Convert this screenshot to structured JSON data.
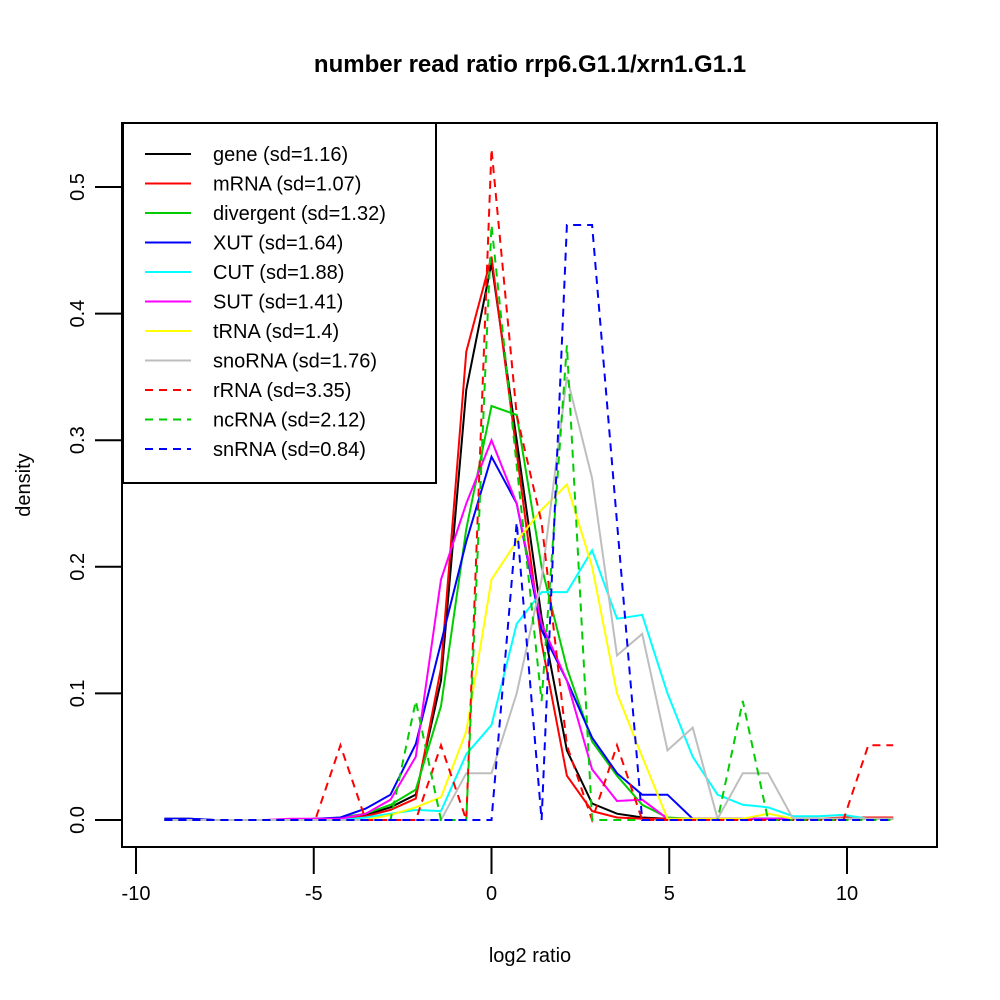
{
  "chart_data": {
    "type": "line",
    "title": "number read ratio rrp6.G1.1/xrn1.G1.1",
    "xlabel": "log2 ratio",
    "ylabel": "density",
    "xlim": [
      -10.0,
      12.0
    ],
    "ylim": [
      -0.02,
      0.55
    ],
    "xticks": [
      "-10",
      "-5",
      "0",
      "5",
      "10"
    ],
    "xtick_values": [
      -10,
      -5,
      0,
      5,
      10
    ],
    "yticks": [
      "0.0",
      "0.1",
      "0.2",
      "0.3",
      "0.4",
      "0.5"
    ],
    "ytick_values": [
      0.0,
      0.1,
      0.2,
      0.3,
      0.4,
      0.5
    ],
    "grid": false,
    "legend_position": "top-left",
    "x": [
      -9.2,
      -8.49,
      -7.79,
      -7.08,
      -6.37,
      -5.66,
      -4.96,
      -4.25,
      -3.54,
      -2.84,
      -2.13,
      -1.42,
      -0.71,
      0.0,
      0.71,
      1.41,
      2.12,
      2.83,
      3.53,
      4.24,
      4.95,
      5.66,
      6.36,
      7.07,
      7.78,
      8.48,
      9.19,
      9.9,
      10.6,
      11.3
    ],
    "series": [
      {
        "name": "gene (sd=1.16)",
        "color": "#000000",
        "dash": false,
        "values": [
          0.001,
          0.001,
          0.0,
          0.0,
          0.0,
          0.0,
          0.001,
          0.001,
          0.004,
          0.01,
          0.02,
          0.11,
          0.34,
          0.44,
          0.3,
          0.16,
          0.055,
          0.013,
          0.005,
          0.002,
          0.001,
          0.001,
          0.001,
          0.001,
          0.001,
          0.001,
          0.001,
          0.001,
          0.001,
          0.001
        ]
      },
      {
        "name": "mRNA (sd=1.07)",
        "color": "#ff0000",
        "dash": false,
        "values": [
          0.0,
          0.0,
          0.0,
          0.0,
          0.0,
          0.0,
          0.0,
          0.001,
          0.003,
          0.008,
          0.017,
          0.12,
          0.37,
          0.445,
          0.29,
          0.14,
          0.035,
          0.007,
          0.002,
          0.001,
          0.001,
          0.001,
          0.001,
          0.001,
          0.001,
          0.001,
          0.001,
          0.002,
          0.002,
          0.002
        ]
      },
      {
        "name": "divergent (sd=1.32)",
        "color": "#00cd00",
        "dash": false,
        "values": [
          0.0,
          0.0,
          0.0,
          0.0,
          0.0,
          0.0,
          0.0,
          0.002,
          0.005,
          0.012,
          0.024,
          0.09,
          0.23,
          0.327,
          0.32,
          0.2,
          0.12,
          0.062,
          0.035,
          0.012,
          0.002,
          0.001,
          0.001,
          0.001,
          0.001,
          0.001,
          0.001,
          0.001,
          0.001,
          0.001
        ]
      },
      {
        "name": "XUT (sd=1.64)",
        "color": "#0000ff",
        "dash": false,
        "values": [
          0.001,
          0.001,
          0.0,
          0.0,
          0.0,
          0.0,
          0.001,
          0.002,
          0.009,
          0.02,
          0.06,
          0.14,
          0.22,
          0.287,
          0.25,
          0.15,
          0.11,
          0.065,
          0.037,
          0.02,
          0.02,
          0.001,
          0.001,
          0.001,
          0.001,
          0.001,
          0.001,
          0.001,
          0.001,
          0.001
        ]
      },
      {
        "name": "CUT (sd=1.88)",
        "color": "#00ffff",
        "dash": false,
        "values": [
          0.0,
          0.0,
          0.0,
          0.0,
          0.0,
          0.0,
          0.0,
          0.0,
          0.002,
          0.005,
          0.008,
          0.007,
          0.052,
          0.075,
          0.155,
          0.18,
          0.18,
          0.213,
          0.159,
          0.162,
          0.1,
          0.05,
          0.02,
          0.012,
          0.01,
          0.003,
          0.003,
          0.004,
          0.001,
          0.001
        ]
      },
      {
        "name": "SUT (sd=1.41)",
        "color": "#ff00ff",
        "dash": false,
        "values": [
          0.0,
          0.0,
          0.0,
          0.0,
          0.0,
          0.001,
          0.001,
          0.001,
          0.005,
          0.016,
          0.05,
          0.19,
          0.25,
          0.3,
          0.25,
          0.155,
          0.11,
          0.04,
          0.015,
          0.016,
          0.001,
          0.001,
          0.001,
          0.001,
          0.001,
          0.001,
          0.001,
          0.001,
          0.001,
          0.001
        ]
      },
      {
        "name": "tRNA (sd=1.4)",
        "color": "#ffff00",
        "dash": false,
        "values": [
          0.0,
          0.0,
          0.0,
          0.0,
          0.0,
          0.0,
          0.0,
          0.0,
          0.0,
          0.004,
          0.01,
          0.018,
          0.07,
          0.19,
          0.22,
          0.245,
          0.265,
          0.2,
          0.1,
          0.05,
          0.001,
          0.001,
          0.001,
          0.001,
          0.005,
          0.001,
          0.001,
          0.001,
          0.001,
          0.001
        ]
      },
      {
        "name": "snoRNA (sd=1.76)",
        "color": "#bebebe",
        "dash": false,
        "values": [
          0.0,
          0.0,
          0.0,
          0.0,
          0.0,
          0.0,
          0.0,
          0.0,
          0.0,
          0.0,
          0.0,
          0.0,
          0.037,
          0.037,
          0.1,
          0.19,
          0.35,
          0.27,
          0.13,
          0.147,
          0.055,
          0.073,
          0.001,
          0.037,
          0.037,
          0.001,
          0.001,
          0.001,
          0.001,
          0.001
        ]
      },
      {
        "name": "rRNA (sd=3.35)",
        "color": "#ff0000",
        "dash": true,
        "values": [
          0.0,
          0.0,
          0.0,
          0.0,
          0.0,
          0.0,
          0.0,
          0.059,
          0.0,
          0.0,
          0.0,
          0.059,
          0.0,
          0.53,
          0.32,
          0.235,
          0.059,
          0.0,
          0.059,
          0.0,
          0.0,
          0.0,
          0.0,
          0.0,
          0.0,
          0.0,
          0.0,
          0.0,
          0.059,
          0.059
        ]
      },
      {
        "name": "ncRNA (sd=2.12)",
        "color": "#00cd00",
        "dash": true,
        "values": [
          0.0,
          0.0,
          0.0,
          0.0,
          0.0,
          0.0,
          0.0,
          0.0,
          0.0,
          0.0,
          0.094,
          0.0,
          0.0,
          0.47,
          0.28,
          0.094,
          0.375,
          0.0,
          0.0,
          0.0,
          0.0,
          0.0,
          0.0,
          0.094,
          0.0,
          0.0,
          0.0,
          0.0,
          0.0,
          0.0
        ]
      },
      {
        "name": "snRNA (sd=0.84)",
        "color": "#0000ff",
        "dash": true,
        "values": [
          0.0,
          0.0,
          0.0,
          0.0,
          0.0,
          0.0,
          0.0,
          0.0,
          0.0,
          0.0,
          0.0,
          0.0,
          0.0,
          0.0,
          0.235,
          0.0,
          0.47,
          0.47,
          0.235,
          0.0,
          0.0,
          0.0,
          0.0,
          0.0,
          0.0,
          0.0,
          0.0,
          0.0,
          0.0,
          0.0
        ]
      }
    ]
  }
}
